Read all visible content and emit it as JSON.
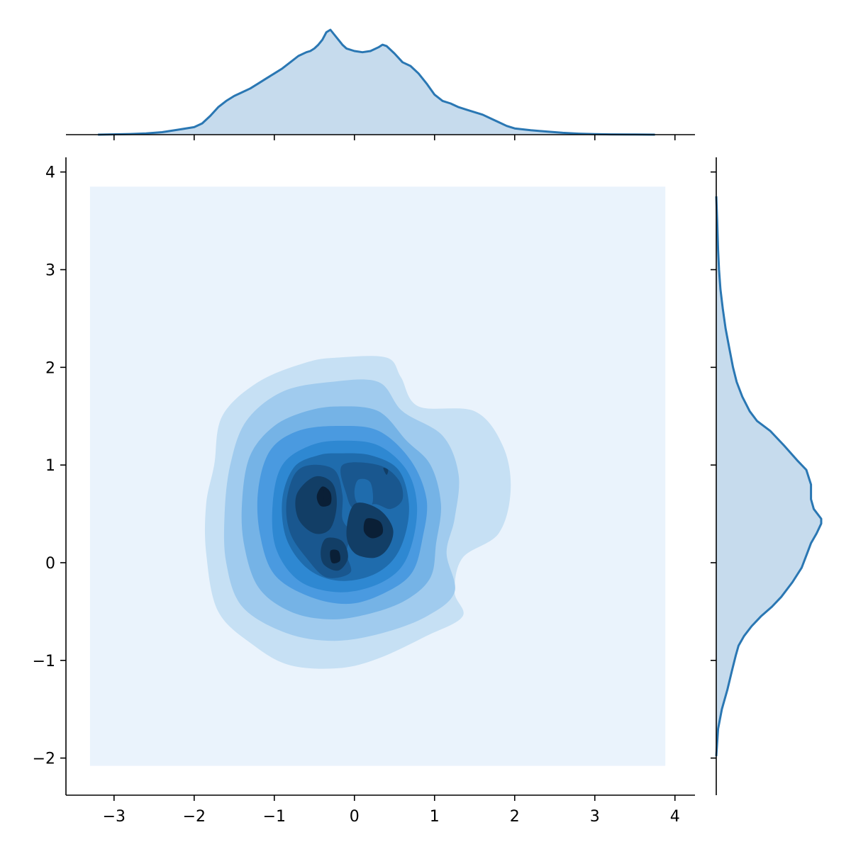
{
  "chart_data": {
    "type": "kde-joint",
    "title": "",
    "xlabel": "",
    "ylabel": "",
    "xlim": [
      -3.6,
      4.25
    ],
    "ylim": [
      -2.38,
      4.15
    ],
    "x_ticks": [
      -3,
      -2,
      -1,
      0,
      1,
      2,
      3,
      4
    ],
    "y_ticks": [
      -2,
      -1,
      0,
      1,
      2,
      3,
      4
    ],
    "x_tick_labels": [
      "−3",
      "−2",
      "−1",
      "0",
      "1",
      "2",
      "3",
      "4"
    ],
    "y_tick_labels": [
      "−2",
      "−1",
      "0",
      "1",
      "2",
      "3",
      "4"
    ],
    "grid": false,
    "legend": "none",
    "colors": {
      "line": "#2a77b3",
      "fill": "#c6dbed",
      "levels": [
        "#eaf3fc",
        "#c6e0f4",
        "#a0cbee",
        "#75b3e6",
        "#4a9ae0",
        "#2e88d2",
        "#1f6cad",
        "#19578f",
        "#123e66",
        "#0a1f36"
      ]
    },
    "joint": {
      "background_rect": {
        "x": [
          -3.3,
          3.88
        ],
        "y": [
          -2.08,
          3.85
        ]
      },
      "contours": [
        {
          "level": 1,
          "points": [
            [
              -0.2,
              2.1
            ],
            [
              0.4,
              2.1
            ],
            [
              0.58,
              1.9
            ],
            [
              0.8,
              1.6
            ],
            [
              1.5,
              1.55
            ],
            [
              1.85,
              1.2
            ],
            [
              1.95,
              0.75
            ],
            [
              1.8,
              0.3
            ],
            [
              1.35,
              0.05
            ],
            [
              1.25,
              -0.3
            ],
            [
              1.35,
              -0.55
            ],
            [
              0.9,
              -0.75
            ],
            [
              0.3,
              -0.98
            ],
            [
              -0.2,
              -1.08
            ],
            [
              -0.8,
              -1.05
            ],
            [
              -1.25,
              -0.85
            ],
            [
              -1.7,
              -0.5
            ],
            [
              -1.85,
              0.1
            ],
            [
              -1.85,
              0.6
            ],
            [
              -1.75,
              1.0
            ],
            [
              -1.65,
              1.5
            ],
            [
              -1.2,
              1.85
            ],
            [
              -0.6,
              2.05
            ]
          ]
        },
        {
          "level": 2,
          "points": [
            [
              -0.3,
              1.85
            ],
            [
              0.3,
              1.85
            ],
            [
              0.6,
              1.55
            ],
            [
              1.1,
              1.3
            ],
            [
              1.3,
              0.9
            ],
            [
              1.25,
              0.45
            ],
            [
              1.15,
              0.1
            ],
            [
              1.25,
              -0.3
            ],
            [
              0.9,
              -0.55
            ],
            [
              0.35,
              -0.72
            ],
            [
              -0.25,
              -0.8
            ],
            [
              -0.85,
              -0.72
            ],
            [
              -1.4,
              -0.45
            ],
            [
              -1.6,
              0.0
            ],
            [
              -1.62,
              0.5
            ],
            [
              -1.55,
              1.0
            ],
            [
              -1.35,
              1.45
            ],
            [
              -0.9,
              1.75
            ]
          ]
        },
        {
          "level": 3,
          "points": [
            [
              -0.2,
              1.6
            ],
            [
              0.3,
              1.55
            ],
            [
              0.65,
              1.25
            ],
            [
              0.95,
              1.0
            ],
            [
              1.08,
              0.6
            ],
            [
              1.02,
              0.2
            ],
            [
              0.95,
              -0.15
            ],
            [
              0.65,
              -0.38
            ],
            [
              0.2,
              -0.52
            ],
            [
              -0.3,
              -0.58
            ],
            [
              -0.8,
              -0.5
            ],
            [
              -1.2,
              -0.25
            ],
            [
              -1.38,
              0.2
            ],
            [
              -1.4,
              0.65
            ],
            [
              -1.3,
              1.1
            ],
            [
              -1.0,
              1.4
            ],
            [
              -0.6,
              1.55
            ]
          ]
        },
        {
          "level": 4,
          "points": [
            [
              -0.2,
              1.4
            ],
            [
              0.3,
              1.35
            ],
            [
              0.7,
              1.05
            ],
            [
              0.9,
              0.65
            ],
            [
              0.85,
              0.25
            ],
            [
              0.72,
              -0.1
            ],
            [
              0.4,
              -0.3
            ],
            [
              -0.05,
              -0.42
            ],
            [
              -0.55,
              -0.35
            ],
            [
              -1.0,
              -0.12
            ],
            [
              -1.18,
              0.3
            ],
            [
              -1.2,
              0.75
            ],
            [
              -1.05,
              1.15
            ],
            [
              -0.7,
              1.35
            ]
          ]
        },
        {
          "level": 5,
          "points": [
            [
              -0.15,
              1.25
            ],
            [
              0.3,
              1.2
            ],
            [
              0.65,
              0.95
            ],
            [
              0.78,
              0.6
            ],
            [
              0.72,
              0.2
            ],
            [
              0.55,
              -0.08
            ],
            [
              0.2,
              -0.25
            ],
            [
              -0.25,
              -0.3
            ],
            [
              -0.7,
              -0.18
            ],
            [
              -0.98,
              0.15
            ],
            [
              -1.02,
              0.6
            ],
            [
              -0.9,
              1.0
            ],
            [
              -0.55,
              1.2
            ]
          ]
        },
        {
          "level": 6,
          "points": [
            [
              -0.2,
              1.12
            ],
            [
              0.2,
              1.1
            ],
            [
              0.55,
              0.95
            ],
            [
              0.68,
              0.6
            ],
            [
              0.62,
              0.25
            ],
            [
              0.45,
              0.0
            ],
            [
              0.15,
              -0.15
            ],
            [
              -0.25,
              -0.18
            ],
            [
              -0.6,
              -0.05
            ],
            [
              -0.85,
              0.25
            ],
            [
              -0.9,
              0.65
            ],
            [
              -0.75,
              0.98
            ],
            [
              -0.45,
              1.1
            ]
          ]
        },
        {
          "level": 7,
          "points": [
            [
              -0.55,
              1.0
            ],
            [
              -0.25,
              0.95
            ],
            [
              -0.15,
              0.7
            ],
            [
              -0.15,
              0.45
            ],
            [
              -0.05,
              0.3
            ],
            [
              -0.1,
              0.1
            ],
            [
              -0.05,
              -0.1
            ],
            [
              -0.35,
              -0.15
            ],
            [
              -0.6,
              0.05
            ],
            [
              -0.8,
              0.3
            ],
            [
              -0.85,
              0.6
            ],
            [
              -0.75,
              0.9
            ]
          ]
        },
        {
          "level": 8,
          "points": [
            [
              -0.5,
              0.88
            ],
            [
              -0.28,
              0.82
            ],
            [
              -0.22,
              0.6
            ],
            [
              -0.3,
              0.35
            ],
            [
              -0.5,
              0.3
            ],
            [
              -0.7,
              0.45
            ],
            [
              -0.72,
              0.7
            ]
          ]
        },
        {
          "level": 9,
          "points": [
            [
              -0.4,
              0.78
            ],
            [
              -0.3,
              0.72
            ],
            [
              -0.3,
              0.6
            ],
            [
              -0.42,
              0.58
            ],
            [
              -0.47,
              0.68
            ]
          ]
        },
        {
          "level": 10,
          "points": [
            [
              -0.38,
              0.74
            ],
            [
              -0.32,
              0.72
            ],
            [
              -0.32,
              0.66
            ],
            [
              -0.38,
              0.65
            ]
          ]
        },
        {
          "level": 7,
          "points": [
            [
              -0.15,
              1.0
            ],
            [
              0.3,
              1.0
            ],
            [
              0.55,
              0.85
            ],
            [
              0.6,
              0.65
            ],
            [
              0.45,
              0.55
            ],
            [
              0.25,
              0.6
            ],
            [
              0.0,
              0.55
            ],
            [
              -0.1,
              0.7
            ]
          ]
        },
        {
          "level": 6,
          "points": [
            [
              0.05,
              0.85
            ],
            [
              0.2,
              0.82
            ],
            [
              0.22,
              0.6
            ],
            [
              0.05,
              0.6
            ],
            [
              0.0,
              0.72
            ]
          ]
        },
        {
          "level": 8,
          "points": [
            [
              0.0,
              0.6
            ],
            [
              0.3,
              0.55
            ],
            [
              0.48,
              0.35
            ],
            [
              0.42,
              0.15
            ],
            [
              0.25,
              0.05
            ],
            [
              0.0,
              0.1
            ],
            [
              -0.1,
              0.3
            ]
          ]
        },
        {
          "level": 9,
          "points": [
            [
              0.15,
              0.45
            ],
            [
              0.32,
              0.42
            ],
            [
              0.35,
              0.3
            ],
            [
              0.22,
              0.25
            ],
            [
              0.12,
              0.32
            ]
          ]
        },
        {
          "level": 8,
          "points": [
            [
              -0.35,
              0.25
            ],
            [
              -0.15,
              0.22
            ],
            [
              -0.08,
              0.05
            ],
            [
              -0.2,
              -0.08
            ],
            [
              -0.38,
              -0.02
            ],
            [
              -0.42,
              0.12
            ]
          ]
        },
        {
          "level": 9,
          "points": [
            [
              -0.3,
              0.12
            ],
            [
              -0.2,
              0.12
            ],
            [
              -0.18,
              0.02
            ],
            [
              -0.28,
              0.0
            ]
          ]
        },
        {
          "level": 8,
          "points": [
            [
              0.36,
              0.97
            ],
            [
              0.42,
              0.95
            ],
            [
              0.4,
              0.9
            ]
          ]
        }
      ]
    },
    "marginal_x": {
      "x": [
        -3.2,
        -2.8,
        -2.6,
        -2.4,
        -2.2,
        -2.0,
        -1.9,
        -1.8,
        -1.7,
        -1.6,
        -1.5,
        -1.4,
        -1.3,
        -1.2,
        -1.1,
        -1.0,
        -0.9,
        -0.8,
        -0.7,
        -0.6,
        -0.55,
        -0.5,
        -0.45,
        -0.4,
        -0.35,
        -0.3,
        -0.25,
        -0.2,
        -0.15,
        -0.1,
        0.0,
        0.1,
        0.2,
        0.3,
        0.35,
        0.4,
        0.5,
        0.6,
        0.7,
        0.8,
        0.9,
        1.0,
        1.1,
        1.2,
        1.3,
        1.4,
        1.5,
        1.6,
        1.7,
        1.8,
        1.9,
        2.0,
        2.2,
        2.4,
        2.6,
        2.8,
        3.0,
        3.2,
        3.5,
        3.75
      ],
      "y": [
        0.0,
        0.005,
        0.01,
        0.02,
        0.04,
        0.06,
        0.09,
        0.15,
        0.22,
        0.27,
        0.31,
        0.34,
        0.37,
        0.41,
        0.45,
        0.49,
        0.53,
        0.58,
        0.63,
        0.66,
        0.67,
        0.69,
        0.72,
        0.76,
        0.82,
        0.84,
        0.8,
        0.76,
        0.72,
        0.69,
        0.67,
        0.66,
        0.67,
        0.7,
        0.72,
        0.71,
        0.65,
        0.58,
        0.55,
        0.49,
        0.41,
        0.32,
        0.27,
        0.25,
        0.22,
        0.2,
        0.18,
        0.16,
        0.13,
        0.1,
        0.07,
        0.05,
        0.035,
        0.025,
        0.015,
        0.008,
        0.004,
        0.002,
        0.001,
        0.0
      ]
    },
    "marginal_y": {
      "y": [
        -1.98,
        -1.7,
        -1.5,
        -1.3,
        -1.1,
        -0.95,
        -0.85,
        -0.75,
        -0.65,
        -0.55,
        -0.45,
        -0.35,
        -0.2,
        -0.05,
        0.1,
        0.2,
        0.3,
        0.4,
        0.45,
        0.55,
        0.65,
        0.8,
        0.95,
        1.05,
        1.2,
        1.35,
        1.45,
        1.55,
        1.7,
        1.85,
        2.0,
        2.2,
        2.4,
        2.6,
        2.8,
        3.0,
        3.2,
        3.5,
        3.75
      ],
      "x": [
        0.0,
        0.02,
        0.06,
        0.12,
        0.17,
        0.21,
        0.24,
        0.3,
        0.38,
        0.48,
        0.6,
        0.7,
        0.82,
        0.92,
        0.98,
        1.02,
        1.08,
        1.13,
        1.13,
        1.05,
        1.02,
        1.02,
        0.97,
        0.87,
        0.73,
        0.58,
        0.44,
        0.36,
        0.28,
        0.22,
        0.18,
        0.14,
        0.1,
        0.07,
        0.045,
        0.03,
        0.02,
        0.01,
        0.0
      ]
    }
  }
}
